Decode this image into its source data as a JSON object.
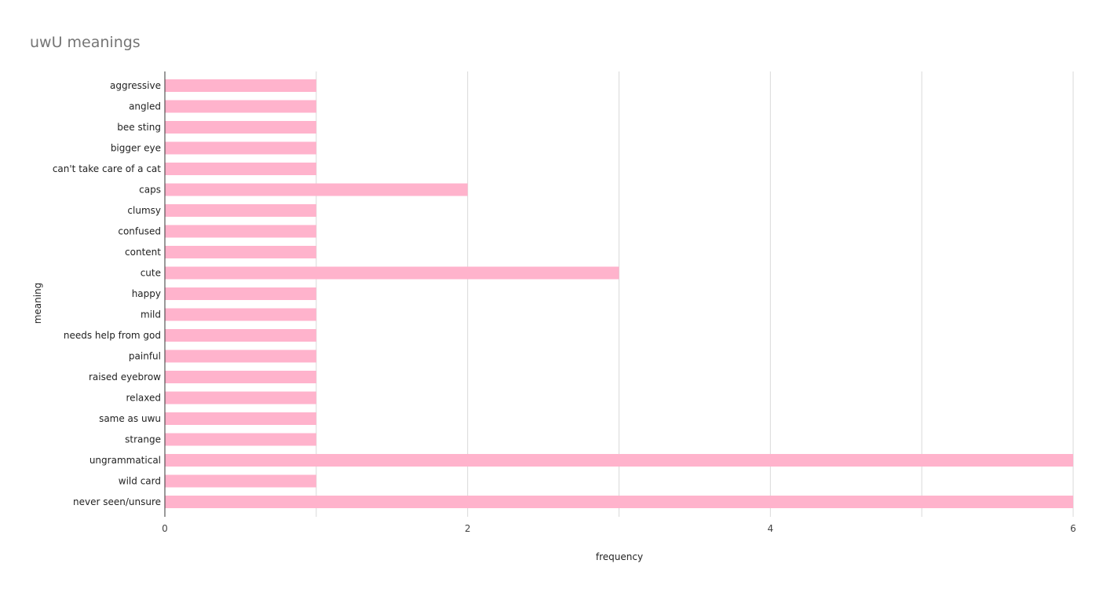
{
  "chart_data": {
    "type": "bar",
    "orientation": "horizontal",
    "title": "uwU meanings",
    "xlabel": "frequency",
    "ylabel": "meaning",
    "xlim": [
      0,
      6
    ],
    "x_ticks": [
      0,
      2,
      4,
      6
    ],
    "grid": true,
    "legend": "none",
    "bar_color": "#ffb3cc",
    "categories": [
      "aggressive",
      "angled",
      "bee sting",
      "bigger eye",
      "can't take care of a cat",
      "caps",
      "clumsy",
      "confused",
      "content",
      "cute",
      "happy",
      "mild",
      "needs help from god",
      "painful",
      "raised eyebrow",
      "relaxed",
      "same as uwu",
      "strange",
      "ungrammatical",
      "wild card",
      "never seen/unsure"
    ],
    "values": [
      1,
      1,
      1,
      1,
      1,
      2,
      1,
      1,
      1,
      3,
      1,
      1,
      1,
      1,
      1,
      1,
      1,
      1,
      6,
      1,
      6
    ]
  }
}
